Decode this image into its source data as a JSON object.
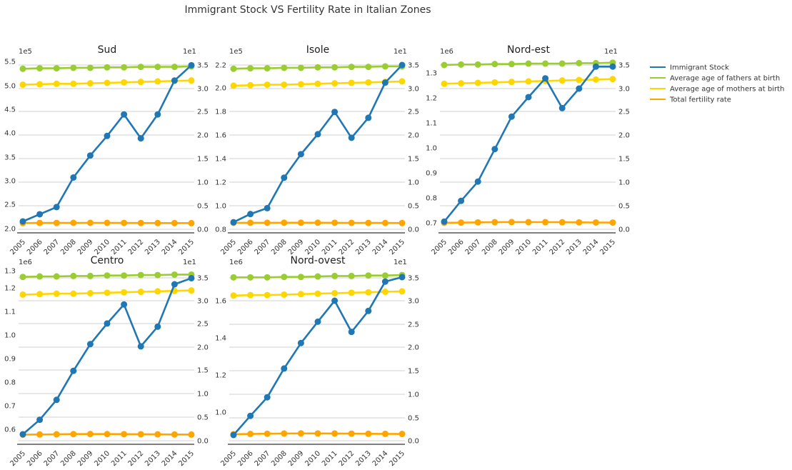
{
  "title": "Immigrant Stock VS Fertility Rate in Italian Zones",
  "colors": {
    "immigrant": "#1f77b4",
    "fathers": "#9acd32",
    "mothers": "#ffd700",
    "fertility": "#ffa500",
    "grid": "#d0d0d0",
    "axis": "#333333"
  },
  "legend": {
    "placement": "right",
    "entries": [
      {
        "label": "Immigrant Stock",
        "color": "#1f77b4"
      },
      {
        "label": "Average age of fathers at birth",
        "color": "#9acd32"
      },
      {
        "label": "Average age of mothers at birth",
        "color": "#ffd700"
      },
      {
        "label": "Total fertility rate",
        "color": "#ffa500"
      }
    ]
  },
  "chart_data": [
    {
      "type": "line",
      "title": "Sud",
      "x": [
        "2005",
        "2006",
        "2007",
        "2008",
        "2009",
        "2010",
        "2011",
        "2012",
        "2013",
        "2014",
        "2015"
      ],
      "left_axis": {
        "multiplier": "1e5",
        "ylim": [
          2.0,
          5.5
        ],
        "ticks": [
          "2.0",
          "2.5",
          "3.0",
          "3.5",
          "4.0",
          "4.5",
          "5.0",
          "5.5"
        ]
      },
      "right_axis": {
        "multiplier": "1e1",
        "ylim": [
          0.0,
          3.5
        ],
        "ticks": [
          "0.0",
          "0.5",
          "1.0",
          "1.5",
          "2.0",
          "2.5",
          "3.0",
          "3.5"
        ]
      },
      "series": [
        {
          "name": "Immigrant Stock",
          "axis": "left",
          "values": [
            215000,
            230000,
            245000,
            307000,
            353000,
            394000,
            439000,
            389000,
            439000,
            510000,
            542000
          ]
        },
        {
          "name": "Average age of fathers at birth",
          "axis": "right",
          "values": [
            34.2,
            34.3,
            34.3,
            34.4,
            34.4,
            34.5,
            34.5,
            34.6,
            34.6,
            34.6,
            34.7
          ]
        },
        {
          "name": "Average age of mothers at birth",
          "axis": "right",
          "values": [
            30.8,
            30.9,
            31.0,
            31.0,
            31.1,
            31.2,
            31.3,
            31.4,
            31.5,
            31.6,
            31.7
          ]
        },
        {
          "name": "Total fertility rate",
          "axis": "right",
          "values": [
            1.33,
            1.35,
            1.36,
            1.37,
            1.37,
            1.37,
            1.36,
            1.34,
            1.33,
            1.32,
            1.31
          ]
        }
      ]
    },
    {
      "type": "line",
      "title": "Isole",
      "x": [
        "2005",
        "2006",
        "2007",
        "2008",
        "2009",
        "2010",
        "2011",
        "2012",
        "2013",
        "2014",
        "2015"
      ],
      "left_axis": {
        "multiplier": "1e5",
        "ylim": [
          0.8,
          2.2
        ],
        "ticks": [
          "0.8",
          "1.0",
          "1.2",
          "1.4",
          "1.6",
          "1.8",
          "2.0",
          "2.2"
        ]
      },
      "right_axis": {
        "multiplier": "1e1",
        "ylim": [
          0.0,
          3.5
        ],
        "ticks": [
          "0.0",
          "0.5",
          "1.0",
          "1.5",
          "2.0",
          "2.5",
          "3.0",
          "3.5"
        ]
      },
      "series": [
        {
          "name": "Immigrant Stock",
          "axis": "left",
          "values": [
            86000,
            93000,
            98000,
            124000,
            144000,
            161000,
            180000,
            158000,
            175000,
            205000,
            220000
          ]
        },
        {
          "name": "Average age of fathers at birth",
          "axis": "right",
          "values": [
            34.2,
            34.3,
            34.3,
            34.4,
            34.4,
            34.5,
            34.5,
            34.6,
            34.6,
            34.7,
            34.7
          ]
        },
        {
          "name": "Average age of mothers at birth",
          "axis": "right",
          "values": [
            30.6,
            30.7,
            30.8,
            30.8,
            30.9,
            31.0,
            31.1,
            31.2,
            31.3,
            31.4,
            31.5
          ]
        },
        {
          "name": "Total fertility rate",
          "axis": "right",
          "values": [
            1.37,
            1.38,
            1.39,
            1.4,
            1.4,
            1.4,
            1.39,
            1.37,
            1.36,
            1.35,
            1.33
          ]
        }
      ]
    },
    {
      "type": "line",
      "title": "Nord-est",
      "x": [
        "2005",
        "2006",
        "2007",
        "2008",
        "2009",
        "2010",
        "2011",
        "2012",
        "2013",
        "2014",
        "2015"
      ],
      "left_axis": {
        "multiplier": "1e6",
        "ylim": [
          0.7,
          1.3
        ],
        "ticks": [
          "0.7",
          "0.8",
          "0.9",
          "1.0",
          "1.1",
          "1.2",
          "1.3"
        ]
      },
      "right_axis": {
        "multiplier": "1e1",
        "ylim": [
          0.0,
          3.5
        ],
        "ticks": [
          "0.0",
          "0.5",
          "1.0",
          "1.5",
          "2.0",
          "2.5",
          "3.0",
          "3.5"
        ]
      },
      "series": [
        {
          "name": "Immigrant Stock",
          "axis": "left",
          "values": [
            705000,
            788000,
            865000,
            995000,
            1125000,
            1203000,
            1278000,
            1159000,
            1237000,
            1325000,
            1325000
          ]
        },
        {
          "name": "Average age of fathers at birth",
          "axis": "right",
          "values": [
            35.0,
            35.1,
            35.1,
            35.2,
            35.2,
            35.3,
            35.3,
            35.3,
            35.4,
            35.4,
            35.5
          ]
        },
        {
          "name": "Average age of mothers at birth",
          "axis": "right",
          "values": [
            31.0,
            31.1,
            31.2,
            31.3,
            31.4,
            31.5,
            31.6,
            31.7,
            31.8,
            31.9,
            32.0
          ]
        },
        {
          "name": "Total fertility rate",
          "axis": "right",
          "values": [
            1.38,
            1.42,
            1.47,
            1.52,
            1.54,
            1.53,
            1.52,
            1.5,
            1.47,
            1.45,
            1.43
          ]
        }
      ]
    },
    {
      "type": "line",
      "title": "Centro",
      "x": [
        "2005",
        "2006",
        "2007",
        "2008",
        "2009",
        "2010",
        "2011",
        "2012",
        "2013",
        "2014",
        "2015"
      ],
      "left_axis": {
        "multiplier": "1e6",
        "ylim": [
          0.6,
          1.3
        ],
        "ticks": [
          "0.6",
          "0.7",
          "0.8",
          "0.9",
          "1.0",
          "1.1",
          "1.2",
          "1.3"
        ]
      },
      "right_axis": {
        "multiplier": "1e1",
        "ylim": [
          0.0,
          3.5
        ],
        "ticks": [
          "0.0",
          "0.5",
          "1.0",
          "1.5",
          "2.0",
          "2.5",
          "3.0",
          "3.5"
        ]
      },
      "series": [
        {
          "name": "Immigrant Stock",
          "axis": "left",
          "values": [
            578000,
            642000,
            730000,
            858000,
            976000,
            1067000,
            1151000,
            966000,
            1053000,
            1240000,
            1267000
          ]
        },
        {
          "name": "Average age of fathers at birth",
          "axis": "right",
          "values": [
            35.2,
            35.3,
            35.3,
            35.4,
            35.4,
            35.5,
            35.5,
            35.6,
            35.6,
            35.7,
            35.7
          ]
        },
        {
          "name": "Average age of mothers at birth",
          "axis": "right",
          "values": [
            31.4,
            31.5,
            31.6,
            31.6,
            31.7,
            31.8,
            31.9,
            32.0,
            32.1,
            32.2,
            32.3
          ]
        },
        {
          "name": "Total fertility rate",
          "axis": "right",
          "values": [
            1.3,
            1.34,
            1.38,
            1.42,
            1.43,
            1.42,
            1.41,
            1.39,
            1.36,
            1.34,
            1.32
          ]
        }
      ]
    },
    {
      "type": "line",
      "title": "Nord-ovest",
      "x": [
        "2005",
        "2006",
        "2007",
        "2008",
        "2009",
        "2010",
        "2011",
        "2012",
        "2013",
        "2014",
        "2015"
      ],
      "left_axis": {
        "multiplier": "1e6",
        "ylim": [
          0.88,
          1.8
        ],
        "ticks": [
          "1.0",
          "1.2",
          "1.4",
          "1.6"
        ]
      },
      "right_axis": {
        "multiplier": "1e1",
        "ylim": [
          0.0,
          3.5
        ],
        "ticks": [
          "0.0",
          "0.5",
          "1.0",
          "1.5",
          "2.0",
          "2.5",
          "3.0",
          "3.5"
        ]
      },
      "series": [
        {
          "name": "Immigrant Stock",
          "axis": "left",
          "values": [
            877000,
            980000,
            1080000,
            1235000,
            1372000,
            1487000,
            1600000,
            1432000,
            1545000,
            1703000,
            1727000
          ]
        },
        {
          "name": "Average age of fathers at birth",
          "axis": "right",
          "values": [
            35.1,
            35.1,
            35.1,
            35.2,
            35.2,
            35.3,
            35.4,
            35.4,
            35.5,
            35.5,
            35.6
          ]
        },
        {
          "name": "Average age of mothers at birth",
          "axis": "right",
          "values": [
            31.2,
            31.3,
            31.3,
            31.4,
            31.5,
            31.6,
            31.7,
            31.8,
            31.9,
            32.0,
            32.1
          ]
        },
        {
          "name": "Total fertility rate",
          "axis": "right",
          "values": [
            1.4,
            1.45,
            1.5,
            1.55,
            1.57,
            1.56,
            1.55,
            1.52,
            1.49,
            1.47,
            1.45
          ]
        }
      ]
    }
  ]
}
